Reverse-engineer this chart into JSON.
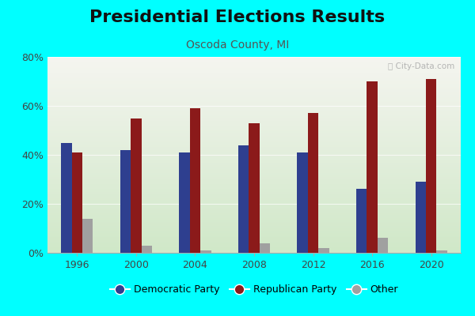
{
  "title": "Presidential Elections Results",
  "subtitle": "Oscoda County, MI",
  "years": [
    1996,
    2000,
    2004,
    2008,
    2012,
    2016,
    2020
  ],
  "democratic": [
    45,
    42,
    41,
    44,
    41,
    26,
    29
  ],
  "republican": [
    41,
    55,
    59,
    53,
    57,
    70,
    71
  ],
  "other": [
    14,
    3,
    1,
    4,
    2,
    6,
    1
  ],
  "dem_color": "#2e3f8f",
  "rep_color": "#8b1a1a",
  "other_color": "#a0a0a0",
  "bg_top": "#f5f5f0",
  "bg_bottom": "#d0e8c8",
  "outer_bg": "#00ffff",
  "ylim": [
    0,
    80
  ],
  "yticks": [
    0,
    20,
    40,
    60,
    80
  ],
  "ytick_labels": [
    "0%",
    "20%",
    "40%",
    "60%",
    "80%"
  ],
  "bar_width": 0.18,
  "title_fontsize": 16,
  "subtitle_fontsize": 10,
  "watermark": "ⓘ City-Data.com"
}
